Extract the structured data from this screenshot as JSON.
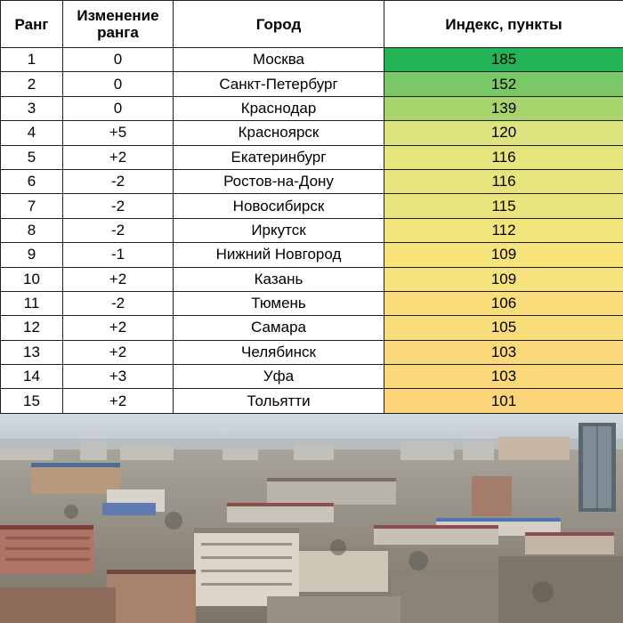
{
  "table": {
    "headers": {
      "rank": "Ранг",
      "change": "Изменение ранга",
      "city": "Город",
      "index": "Индекс, пункты"
    },
    "rows": [
      {
        "rank": "1",
        "change": "0",
        "city": "Москва",
        "index": "185",
        "color": "#23b356"
      },
      {
        "rank": "2",
        "change": "0",
        "city": "Санкт-Петербург",
        "index": "152",
        "color": "#79c766"
      },
      {
        "rank": "3",
        "change": "0",
        "city": "Краснодар",
        "index": "139",
        "color": "#a8d46d"
      },
      {
        "rank": "4",
        "change": "+5",
        "city": "Красноярск",
        "index": "120",
        "color": "#dde47f"
      },
      {
        "rank": "5",
        "change": "+2",
        "city": "Екатеринбург",
        "index": "116",
        "color": "#e6e47d"
      },
      {
        "rank": "6",
        "change": "-2",
        "city": "Ростов-на-Дону",
        "index": "116",
        "color": "#e6e47d"
      },
      {
        "rank": "7",
        "change": "-2",
        "city": "Новосибирск",
        "index": "115",
        "color": "#eae47d"
      },
      {
        "rank": "8",
        "change": "-2",
        "city": "Иркутск",
        "index": "112",
        "color": "#f0e47c"
      },
      {
        "rank": "9",
        "change": "-1",
        "city": "Нижний Новгород",
        "index": "109",
        "color": "#f6e37c"
      },
      {
        "rank": "10",
        "change": "+2",
        "city": "Казань",
        "index": "109",
        "color": "#f6e37c"
      },
      {
        "rank": "11",
        "change": "-2",
        "city": "Тюмень",
        "index": "106",
        "color": "#f9de7b"
      },
      {
        "rank": "12",
        "change": "+2",
        "city": "Самара",
        "index": "105",
        "color": "#fadd7b"
      },
      {
        "rank": "13",
        "change": "+2",
        "city": "Челябинск",
        "index": "103",
        "color": "#fbd87a"
      },
      {
        "rank": "14",
        "change": "+3",
        "city": "Уфа",
        "index": "103",
        "color": "#fbd87a"
      },
      {
        "rank": "15",
        "change": "+2",
        "city": "Тольятти",
        "index": "101",
        "color": "#fbd479"
      }
    ]
  }
}
